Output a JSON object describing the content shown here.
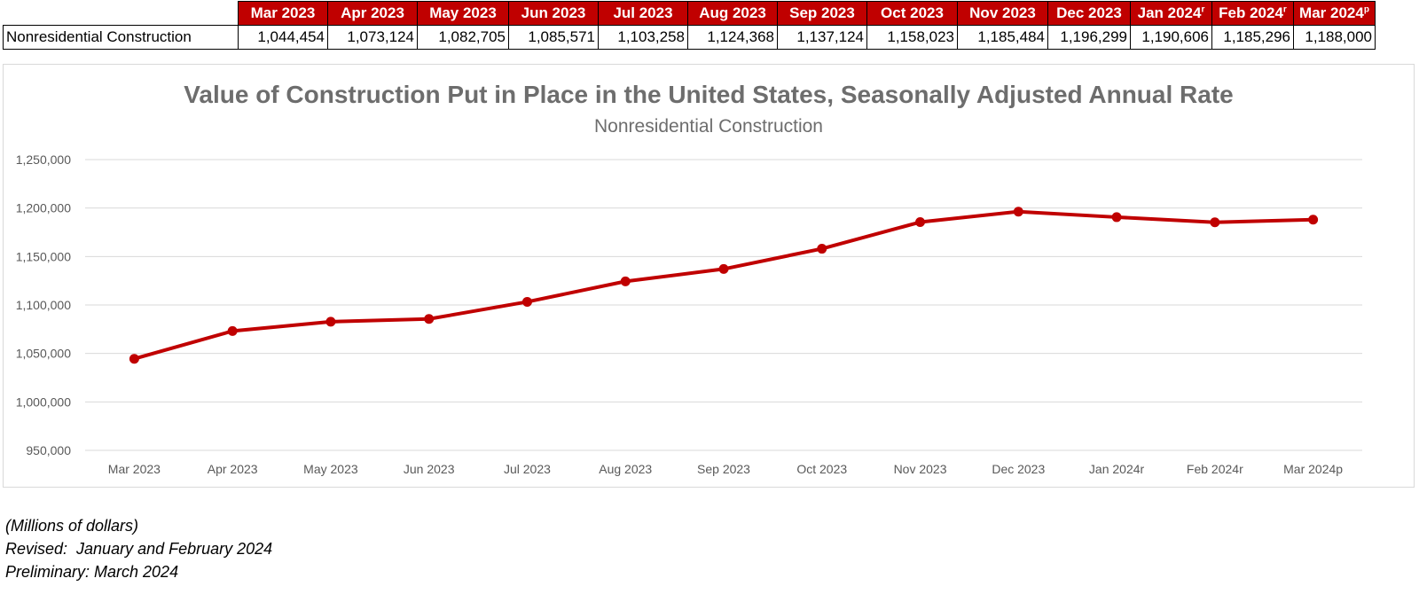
{
  "table": {
    "row_label": "Nonresidential Construction",
    "headers": [
      {
        "text": "Mar 2023",
        "sup": ""
      },
      {
        "text": "Apr 2023",
        "sup": ""
      },
      {
        "text": "May 2023",
        "sup": ""
      },
      {
        "text": "Jun 2023",
        "sup": ""
      },
      {
        "text": "Jul 2023",
        "sup": ""
      },
      {
        "text": "Aug 2023",
        "sup": ""
      },
      {
        "text": "Sep 2023",
        "sup": ""
      },
      {
        "text": "Oct 2023",
        "sup": ""
      },
      {
        "text": "Nov 2023",
        "sup": ""
      },
      {
        "text": "Dec 2023",
        "sup": ""
      },
      {
        "text": "Jan 2024",
        "sup": "r"
      },
      {
        "text": "Feb 2024",
        "sup": "r"
      },
      {
        "text": "Mar 2024",
        "sup": "p"
      }
    ],
    "values": [
      "1,044,454",
      "1,073,124",
      "1,082,705",
      "1,085,571",
      "1,103,258",
      "1,124,368",
      "1,137,124",
      "1,158,023",
      "1,185,484",
      "1,196,299",
      "1,190,606",
      "1,185,296",
      "1,188,000"
    ]
  },
  "chart_data": {
    "type": "line",
    "title": "Value of Construction Put in Place in the United States, Seasonally Adjusted Annual Rate",
    "subtitle": "Nonresidential Construction",
    "categories": [
      "Mar 2023",
      "Apr 2023",
      "May 2023",
      "Jun 2023",
      "Jul 2023",
      "Aug 2023",
      "Sep 2023",
      "Oct 2023",
      "Nov 2023",
      "Dec 2023",
      "Jan 2024r",
      "Feb 2024r",
      "Mar 2024p"
    ],
    "series": [
      {
        "values": [
          1044454,
          1073124,
          1082705,
          1085571,
          1103258,
          1124368,
          1137124,
          1158023,
          1185484,
          1196299,
          1190606,
          1185296,
          1188000
        ]
      }
    ],
    "ylim": [
      950000,
      1250000
    ],
    "yticks": [
      950000,
      1000000,
      1050000,
      1100000,
      1150000,
      1200000,
      1250000
    ],
    "ytick_labels": [
      "950,000",
      "1,000,000",
      "1,050,000",
      "1,100,000",
      "1,150,000",
      "1,200,000",
      "1,250,000"
    ],
    "grid": true,
    "legend": "none",
    "line_color": "#c00000",
    "grid_color": "#d9d9d9",
    "label_color": "#595959"
  },
  "notes": {
    "units": "(Millions of dollars)",
    "revised": "Revised:  January and February 2024",
    "preliminary": "Preliminary: March 2024"
  }
}
